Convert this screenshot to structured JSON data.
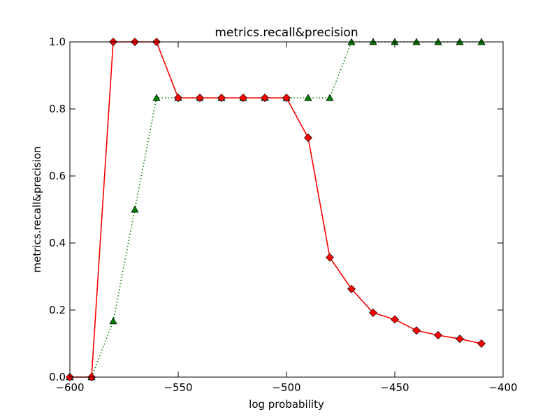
{
  "chart_data": {
    "type": "line",
    "title": "metrics.recall&precision",
    "xlabel": "log probability",
    "ylabel": "metrics.recall&precision",
    "xlim": [
      -600,
      -400
    ],
    "ylim": [
      0.0,
      1.0
    ],
    "xticks": [
      -600,
      -550,
      -500,
      -450,
      -400
    ],
    "yticks": [
      0.0,
      0.2,
      0.4,
      0.6,
      0.8,
      1.0
    ],
    "xtick_labels": [
      "−600",
      "−550",
      "−500",
      "−450",
      "−400"
    ],
    "ytick_labels": [
      "0.0",
      "0.2",
      "0.4",
      "0.6",
      "0.8",
      "1.0"
    ],
    "grid": false,
    "legend": false,
    "series": [
      {
        "color": "#008000",
        "line_style": "dotted",
        "marker": "triangle",
        "x": [
          -600,
          -590,
          -580,
          -570,
          -560,
          -550,
          -540,
          -530,
          -520,
          -510,
          -500,
          -490,
          -480,
          -470,
          -460,
          -450,
          -440,
          -430,
          -420,
          -410
        ],
        "y": [
          0.0,
          0.0,
          0.167,
          0.5,
          0.833,
          0.833,
          0.833,
          0.833,
          0.833,
          0.833,
          0.833,
          0.833,
          0.833,
          1.0,
          1.0,
          1.0,
          1.0,
          1.0,
          1.0,
          1.0
        ]
      },
      {
        "color": "#ff0000",
        "line_style": "solid",
        "marker": "diamond",
        "x": [
          -600,
          -590,
          -580,
          -570,
          -560,
          -550,
          -540,
          -530,
          -520,
          -510,
          -500,
          -490,
          -480,
          -470,
          -460,
          -450,
          -440,
          -430,
          -420,
          -410
        ],
        "y": [
          0.0,
          0.0,
          1.0,
          1.0,
          1.0,
          0.833,
          0.833,
          0.833,
          0.833,
          0.833,
          0.833,
          0.714,
          0.357,
          0.263,
          0.192,
          0.172,
          0.139,
          0.125,
          0.114,
          0.1
        ]
      }
    ]
  }
}
